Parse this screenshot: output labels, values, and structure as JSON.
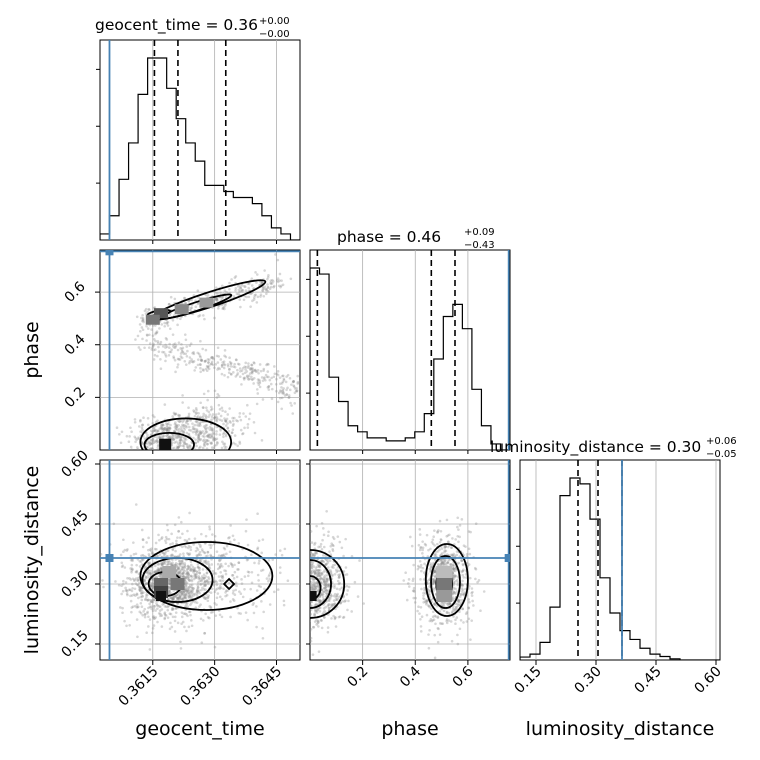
{
  "chart_data": {
    "type": "corner",
    "parameters": [
      "geocent_time",
      "phase",
      "luminosity_distance"
    ],
    "truths": {
      "geocent_time": 0.36045,
      "phase": 0.755,
      "luminosity_distance": 0.365
    },
    "titles": [
      {
        "param": "geocent_time",
        "text": "geocent_time = 0.36",
        "sup": "+0.00",
        "sub": "−0.00"
      },
      {
        "param": "phase",
        "text": "phase = 0.46",
        "sup": "+0.09",
        "sub": "−0.43"
      },
      {
        "param": "luminosity_distance",
        "text": "luminosity_distance = 0.30",
        "sup": "+0.06",
        "sub": "−0.05"
      }
    ],
    "ranges": {
      "geocent_time": [
        0.36022,
        0.36507
      ],
      "phase": [
        0.0,
        0.76
      ],
      "luminosity_distance": [
        0.11,
        0.61
      ]
    },
    "ticks": {
      "geocent_time": [
        "0.3615",
        "0.3630",
        "0.3645"
      ],
      "phase": [
        "0.2",
        "0.4",
        "0.6"
      ],
      "luminosity_distance": [
        "0.15",
        "0.30",
        "0.45",
        "0.60"
      ]
    },
    "tick_values": {
      "geocent_time": [
        0.3615,
        0.363,
        0.3645
      ],
      "phase": [
        0.2,
        0.4,
        0.6
      ],
      "luminosity_distance": [
        0.15,
        0.3,
        0.45,
        0.6
      ]
    },
    "quantiles": {
      "geocent_time": [
        0.36154,
        0.36211,
        0.36327
      ],
      "phase": [
        0.028,
        0.461,
        0.551
      ],
      "luminosity_distance": [
        0.255,
        0.305,
        0.365
      ]
    },
    "marginals": {
      "geocent_time": {
        "range": [
          0.36022,
          0.36507
        ],
        "counts": [
          1,
          4,
          10,
          16,
          24,
          30,
          30,
          25,
          20,
          16,
          13,
          9,
          9,
          8,
          7,
          7,
          6,
          4,
          2,
          1,
          0
        ]
      },
      "phase": {
        "range": [
          0.0,
          0.76
        ],
        "counts": [
          30,
          29,
          12,
          8,
          4,
          3,
          2,
          2,
          1.5,
          1.5,
          2,
          3,
          6,
          15,
          22,
          24,
          20,
          10,
          4,
          1,
          0
        ]
      },
      "luminosity_distance": {
        "range": [
          0.11,
          0.61
        ],
        "counts": [
          0.5,
          1,
          3,
          9,
          28,
          31,
          30,
          24,
          14,
          8,
          5,
          3.5,
          2,
          1,
          0.6,
          0.2,
          0,
          0,
          0,
          0
        ]
      }
    },
    "pairs": [
      {
        "x": "geocent_time",
        "y": "phase"
      },
      {
        "x": "geocent_time",
        "y": "luminosity_distance"
      },
      {
        "x": "phase",
        "y": "luminosity_distance"
      }
    ],
    "xlabels": [
      "geocent_time",
      "phase",
      "luminosity_distance"
    ],
    "ylabels": [
      "phase",
      "luminosity_distance"
    ],
    "grid": true,
    "colors": {
      "truth": "#4682b4",
      "hist": "#000000",
      "scatter": "#8c8c8c"
    }
  }
}
